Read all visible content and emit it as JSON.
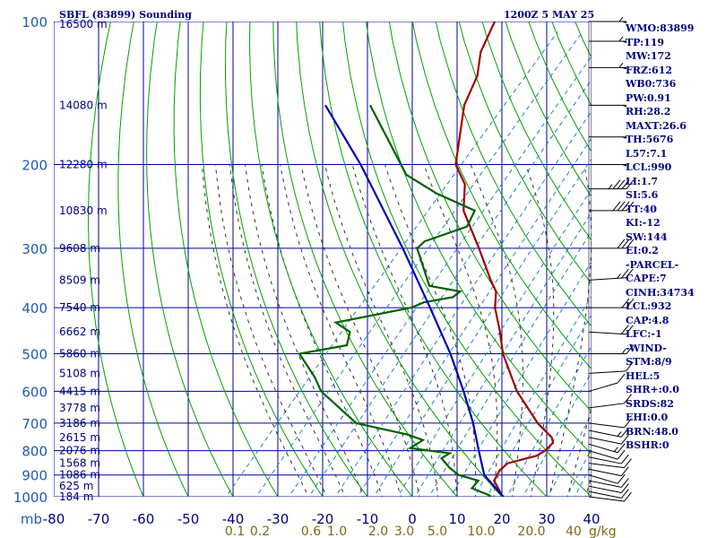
{
  "title": {
    "station": "SBFL (83899) Sounding",
    "time": "1200Z  5 MAY 25"
  },
  "indices": [
    "WMO:83899",
    "TP:119",
    "MW:172",
    "FRZ:612",
    "WB0:736",
    "PW:0.91",
    "RH:28.2",
    "MAXT:26.6",
    "TH:5676",
    "L57:7.1",
    "LCL:990",
    "LI:1.7",
    "SI:5.6",
    "TT:40",
    "KI:-12",
    "SW:144",
    "EI:0.2",
    "-PARCEL-",
    "CAPE:7",
    "CINH:34734",
    "LCL:932",
    "CAP:4.8",
    "LFC:-1",
    "-WIND-",
    "STM:8/9",
    "HEL:5",
    "SHR+:0.0",
    "SRDS:82",
    "EHI:0.0",
    "BRN:48.0",
    "BSHR:0"
  ],
  "colors": {
    "axes": "#0000a0",
    "dry_adiabat": "#00a000",
    "moist_adiabat": "#333333",
    "mixing_ratio": "#2080c0",
    "temperature": "#a00000",
    "dewpoint": "#006000",
    "parcel": "#0000b4",
    "wind": "#000000"
  },
  "chart_data": {
    "type": "line",
    "title": "SBFL (83899) Sounding",
    "xlabel": "",
    "ylabel": "mb",
    "y_scale": "log-pressure",
    "ylim": [
      1000,
      100
    ],
    "xlim": [
      -80,
      40
    ],
    "pressure_ticks": [
      100,
      200,
      300,
      400,
      500,
      600,
      700,
      800,
      900,
      1000
    ],
    "temperature_ticks": [
      -80,
      -70,
      -60,
      -50,
      -40,
      -30,
      -20,
      -10,
      0,
      10,
      20,
      30,
      40
    ],
    "pressure_axis_label": "mb",
    "mixing_ratio_ticks": [
      "0.1",
      "0.2",
      "0.6",
      "1.0",
      "2.0",
      "3.0",
      "5.0",
      "10.0",
      "20.0",
      "40"
    ],
    "mixing_ratio_unit": "g/kg",
    "height_labels": [
      {
        "p": 100,
        "label": "16500 m"
      },
      {
        "p": 150,
        "label": "14080 m"
      },
      {
        "p": 200,
        "label": "12280 m"
      },
      {
        "p": 250,
        "label": "10830 m"
      },
      {
        "p": 300,
        "label": "9608 m"
      },
      {
        "p": 350,
        "label": "8509 m"
      },
      {
        "p": 400,
        "label": "7540 m"
      },
      {
        "p": 450,
        "label": "6662 m"
      },
      {
        "p": 500,
        "label": "5860 m"
      },
      {
        "p": 550,
        "label": "5108 m"
      },
      {
        "p": 600,
        "label": "4415 m"
      },
      {
        "p": 650,
        "label": "3778 m"
      },
      {
        "p": 700,
        "label": "3186 m"
      },
      {
        "p": 750,
        "label": "2615 m"
      },
      {
        "p": 800,
        "label": "2076 m"
      },
      {
        "p": 850,
        "label": "1568 m"
      },
      {
        "p": 900,
        "label": "1086 m"
      },
      {
        "p": 950,
        "label": "625 m"
      },
      {
        "p": 1000,
        "label": "184 m"
      }
    ],
    "series": [
      {
        "name": "Temperature",
        "points": [
          [
            1008,
            21.0
          ],
          [
            990,
            19.5
          ],
          [
            950,
            16.8
          ],
          [
            925,
            15.0
          ],
          [
            880,
            14.2
          ],
          [
            850,
            14.6
          ],
          [
            820,
            19.5
          ],
          [
            800,
            20.4
          ],
          [
            770,
            20.6
          ],
          [
            750,
            19.2
          ],
          [
            700,
            13.2
          ],
          [
            600,
            2.2
          ],
          [
            500,
            -8.5
          ],
          [
            450,
            -13.5
          ],
          [
            400,
            -19.5
          ],
          [
            370,
            -22.5
          ],
          [
            350,
            -26
          ],
          [
            300,
            -35
          ],
          [
            250,
            -46
          ],
          [
            220,
            -51
          ],
          [
            200,
            -57
          ],
          [
            150,
            -67
          ],
          [
            130,
            -70
          ],
          [
            116,
            -74
          ],
          [
            100,
            -77
          ]
        ]
      },
      {
        "name": "Dew Point",
        "points": [
          [
            1008,
            18.5
          ],
          [
            990,
            16.5
          ],
          [
            960,
            11.6
          ],
          [
            925,
            11.5
          ],
          [
            900,
            6.0
          ],
          [
            870,
            2.6
          ],
          [
            830,
            -1.2
          ],
          [
            810,
            -0.4
          ],
          [
            790,
            -10.2
          ],
          [
            760,
            -9.0
          ],
          [
            740,
            -13.5
          ],
          [
            700,
            -27.3
          ],
          [
            600,
            -41.5
          ],
          [
            560,
            -45.8
          ],
          [
            500,
            -53.9
          ],
          [
            480,
            -45.0
          ],
          [
            450,
            -47.0
          ],
          [
            430,
            -52.0
          ],
          [
            400,
            -38.2
          ],
          [
            390,
            -36.5
          ],
          [
            380,
            -31.0
          ],
          [
            370,
            -30.5
          ],
          [
            360,
            -38.5
          ],
          [
            300,
            -48.8
          ],
          [
            290,
            -48.5
          ],
          [
            270,
            -42.0
          ],
          [
            250,
            -43.5
          ],
          [
            230,
            -55.5
          ],
          [
            210,
            -66.0
          ],
          [
            150,
            -88.0
          ]
        ]
      },
      {
        "name": "Parcel",
        "points": [
          [
            1008,
            21.0
          ],
          [
            900,
            11.7
          ],
          [
            800,
            5.6
          ],
          [
            700,
            -1.2
          ],
          [
            600,
            -9.7
          ],
          [
            500,
            -20.2
          ],
          [
            400,
            -34.0
          ],
          [
            300,
            -52.0
          ],
          [
            200,
            -78.2
          ],
          [
            150,
            -98.0
          ]
        ]
      }
    ],
    "wind_barbs": [
      {
        "p": 1000,
        "speed": 10,
        "dir": 290
      },
      {
        "p": 975,
        "speed": 10,
        "dir": 300
      },
      {
        "p": 950,
        "speed": 10,
        "dir": 300
      },
      {
        "p": 925,
        "speed": 10,
        "dir": 300
      },
      {
        "p": 900,
        "speed": 10,
        "dir": 310
      },
      {
        "p": 875,
        "speed": 10,
        "dir": 300
      },
      {
        "p": 850,
        "speed": 10,
        "dir": 290
      },
      {
        "p": 825,
        "speed": 10,
        "dir": 300
      },
      {
        "p": 800,
        "speed": 10,
        "dir": 310
      },
      {
        "p": 775,
        "speed": 15,
        "dir": 310
      },
      {
        "p": 750,
        "speed": 10,
        "dir": 300
      },
      {
        "p": 725,
        "speed": 15,
        "dir": 300
      },
      {
        "p": 700,
        "speed": 10,
        "dir": 290
      },
      {
        "p": 650,
        "speed": 10,
        "dir": 250
      },
      {
        "p": 600,
        "speed": 10,
        "dir": 230
      },
      {
        "p": 550,
        "speed": 10,
        "dir": 260
      },
      {
        "p": 500,
        "speed": 15,
        "dir": 270
      },
      {
        "p": 450,
        "speed": 20,
        "dir": 280
      },
      {
        "p": 400,
        "speed": 20,
        "dir": 270
      },
      {
        "p": 350,
        "speed": 25,
        "dir": 260
      },
      {
        "p": 300,
        "speed": 30,
        "dir": 270
      },
      {
        "p": 250,
        "speed": 40,
        "dir": 270
      },
      {
        "p": 225,
        "speed": 45,
        "dir": 270
      },
      {
        "p": 200,
        "speed": 50,
        "dir": 270
      },
      {
        "p": 175,
        "speed": 50,
        "dir": 270
      },
      {
        "p": 150,
        "speed": 50,
        "dir": 270
      },
      {
        "p": 125,
        "speed": 55,
        "dir": 270
      },
      {
        "p": 110,
        "speed": 55,
        "dir": 270
      },
      {
        "p": 100,
        "speed": 55,
        "dir": 270
      }
    ]
  }
}
